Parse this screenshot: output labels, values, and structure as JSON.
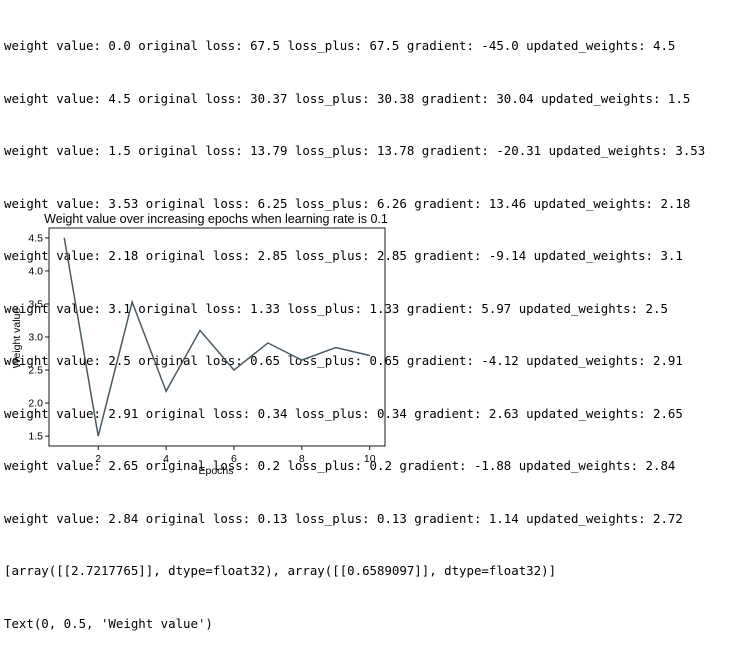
{
  "output_lines": [
    "weight value: 0.0 original loss: 67.5 loss_plus: 67.5 gradient: -45.0 updated_weights: 4.5",
    "weight value: 4.5 original loss: 30.37 loss_plus: 30.38 gradient: 30.04 updated_weights: 1.5",
    "weight value: 1.5 original loss: 13.79 loss_plus: 13.78 gradient: -20.31 updated_weights: 3.53",
    "weight value: 3.53 original loss: 6.25 loss_plus: 6.26 gradient: 13.46 updated_weights: 2.18",
    "weight value: 2.18 original loss: 2.85 loss_plus: 2.85 gradient: -9.14 updated_weights: 3.1",
    "weight value: 3.1 original loss: 1.33 loss_plus: 1.33 gradient: 5.97 updated_weights: 2.5",
    "weight value: 2.5 original loss: 0.65 loss_plus: 0.65 gradient: -4.12 updated_weights: 2.91",
    "weight value: 2.91 original loss: 0.34 loss_plus: 0.34 gradient: 2.63 updated_weights: 2.65",
    "weight value: 2.65 original loss: 0.2 loss_plus: 0.2 gradient: -1.88 updated_weights: 2.84",
    "weight value: 2.84 original loss: 0.13 loss_plus: 0.13 gradient: 1.14 updated_weights: 2.72",
    "[array([[2.7217765]], dtype=float32), array([[0.6589097]], dtype=float32)]",
    "Text(0, 0.5, 'Weight value')"
  ],
  "chart_data": {
    "type": "line",
    "title": "Weight value over increasing epochs when learning rate is 0.1",
    "xlabel": "Epochs",
    "ylabel": "Weight value",
    "x": [
      1,
      2,
      3,
      4,
      5,
      6,
      7,
      8,
      9,
      10
    ],
    "series": [
      {
        "values": [
          4.5,
          1.5,
          3.53,
          2.18,
          3.1,
          2.5,
          2.91,
          2.65,
          2.84,
          2.72
        ]
      }
    ],
    "xlim": [
      0.55,
      10.45
    ],
    "ylim": [
      1.35,
      4.65
    ],
    "xticks": [
      2,
      4,
      6,
      8,
      10
    ],
    "xtick_labels": [
      "2",
      "4",
      "6",
      "8",
      "10"
    ],
    "yticks": [
      1.5,
      2.0,
      2.5,
      3.0,
      3.5,
      4.0,
      4.5
    ],
    "ytick_labels": [
      "1.5",
      "2.0",
      "2.5",
      "3.0",
      "3.5",
      "4.0",
      "4.5"
    ],
    "grid": false,
    "legend": false,
    "line_color": "#4a5a63"
  }
}
